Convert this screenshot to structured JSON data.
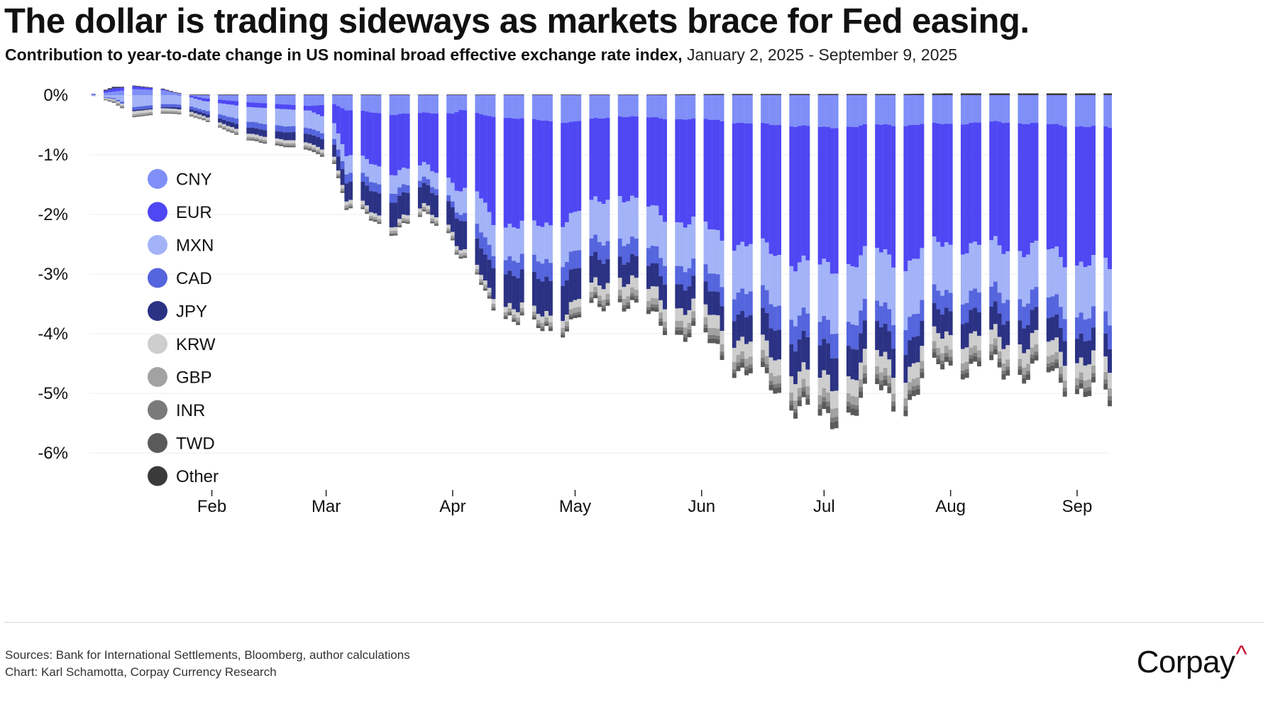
{
  "title": "The dollar is trading sideways as markets brace for Fed easing.",
  "subtitle": {
    "main": "Contribution to year-to-date change in US nominal broad effective exchange rate index,",
    "range": " January 2, 2025 - September 9, 2025"
  },
  "footer": {
    "sources": "Sources: Bank for International Settlements, Bloomberg, author calculations",
    "credit": "Chart: Karl Schamotta, Corpay Currency Research"
  },
  "brand": {
    "name": "Corpay",
    "mark": "^",
    "mark_color": "#c8102e"
  },
  "chart_data": {
    "type": "bar",
    "stacked": true,
    "x_start": "2025-01-02",
    "x_end": "2025-09-09",
    "x_tick_dates": [
      "2025-02-01",
      "2025-03-01",
      "2025-04-01",
      "2025-05-01",
      "2025-06-01",
      "2025-07-01",
      "2025-08-01",
      "2025-09-01"
    ],
    "x_tick_labels": [
      "Feb",
      "Mar",
      "Apr",
      "May",
      "Jun",
      "Jul",
      "Aug",
      "Sep"
    ],
    "y_ticks": [
      0,
      -1,
      -2,
      -3,
      -4,
      -5,
      -6
    ],
    "y_tick_labels": [
      "0%",
      "-1%",
      "-2%",
      "-3%",
      "-4%",
      "-5%",
      "-6%"
    ],
    "ylim": [
      -6.8,
      0.45
    ],
    "grid": "horizontal",
    "legend_position": "left-inside",
    "series_colors": {
      "CNY": "#7f8ff7",
      "EUR": "#4f47f3",
      "MXN": "#a3b3f7",
      "CAD": "#5565dd",
      "JPY": "#2b3284",
      "KRW": "#cecece",
      "GBP": "#a2a2a2",
      "INR": "#7a7a7a",
      "TWD": "#5a5a5a",
      "Other": "#3a3a3a"
    },
    "keypoints": {
      "dates": [
        "2025-01-02",
        "2025-01-08",
        "2025-01-13",
        "2025-01-20",
        "2025-01-30",
        "2025-02-10",
        "2025-02-25",
        "2025-03-03",
        "2025-03-06",
        "2025-03-17",
        "2025-03-26",
        "2025-04-01",
        "2025-04-03",
        "2025-04-07",
        "2025-04-09",
        "2025-04-11",
        "2025-04-21",
        "2025-04-30",
        "2025-05-12",
        "2025-05-20",
        "2025-06-05",
        "2025-06-13",
        "2025-06-27",
        "2025-07-01",
        "2025-07-08",
        "2025-07-14",
        "2025-07-21",
        "2025-07-31",
        "2025-08-13",
        "2025-08-22",
        "2025-09-02",
        "2025-09-09"
      ],
      "series": [
        {
          "name": "CNY",
          "values": [
            0,
            0.06,
            0.1,
            0.08,
            -0.05,
            -0.12,
            -0.18,
            -0.15,
            -0.25,
            -0.32,
            -0.3,
            -0.3,
            -0.25,
            -0.3,
            -0.35,
            -0.35,
            -0.42,
            -0.45,
            -0.35,
            -0.38,
            -0.42,
            -0.48,
            -0.52,
            -0.55,
            -0.52,
            -0.5,
            -0.5,
            -0.48,
            -0.45,
            -0.48,
            -0.52,
            -0.55
          ]
        },
        {
          "name": "EUR",
          "values": [
            0,
            0.05,
            0.05,
            0.02,
            -0.05,
            -0.08,
            -0.08,
            -0.3,
            -0.75,
            -0.95,
            -0.9,
            -1.1,
            -1.4,
            -1.35,
            -1.55,
            -1.7,
            -1.85,
            -1.55,
            -1.3,
            -1.55,
            -1.9,
            -2.05,
            -2.3,
            -2.38,
            -2.25,
            -2.15,
            -2.28,
            -2.0,
            -2.1,
            -2.1,
            -2.25,
            -2.4
          ]
        },
        {
          "name": "MXN",
          "values": [
            0,
            -0.05,
            -0.2,
            -0.15,
            -0.15,
            -0.25,
            -0.3,
            -0.25,
            -0.3,
            -0.3,
            -0.25,
            -0.3,
            -0.4,
            -0.55,
            -0.6,
            -0.5,
            -0.6,
            -0.65,
            -0.7,
            -0.7,
            -0.75,
            -0.8,
            -0.9,
            -1.0,
            -0.95,
            -0.9,
            -0.95,
            -0.8,
            -0.8,
            -0.8,
            -0.85,
            -0.95
          ]
        },
        {
          "name": "CAD",
          "values": [
            0,
            -0.02,
            -0.05,
            -0.05,
            -0.05,
            -0.1,
            -0.1,
            -0.1,
            -0.15,
            -0.15,
            -0.1,
            -0.1,
            -0.1,
            -0.25,
            -0.3,
            -0.2,
            -0.3,
            -0.3,
            -0.3,
            -0.3,
            -0.3,
            -0.4,
            -0.4,
            -0.4,
            -0.4,
            -0.35,
            -0.4,
            -0.3,
            -0.35,
            -0.35,
            -0.35,
            -0.4
          ]
        },
        {
          "name": "JPY",
          "values": [
            0,
            0.02,
            -0.02,
            -0.02,
            -0.05,
            -0.1,
            -0.15,
            -0.2,
            -0.3,
            -0.4,
            -0.35,
            -0.4,
            -0.5,
            -0.45,
            -0.45,
            -0.5,
            -0.6,
            -0.55,
            -0.35,
            -0.4,
            -0.4,
            -0.45,
            -0.55,
            -0.55,
            -0.5,
            -0.5,
            -0.45,
            -0.4,
            -0.4,
            -0.4,
            -0.4,
            -0.4
          ]
        },
        {
          "name": "KRW",
          "values": [
            0,
            -0.02,
            -0.05,
            -0.04,
            -0.03,
            -0.05,
            -0.05,
            -0.05,
            -0.06,
            -0.06,
            -0.06,
            -0.06,
            -0.06,
            -0.07,
            -0.07,
            -0.08,
            -0.1,
            -0.12,
            -0.2,
            -0.2,
            -0.22,
            -0.25,
            -0.28,
            -0.3,
            -0.28,
            -0.27,
            -0.26,
            -0.24,
            -0.24,
            -0.24,
            -0.25,
            -0.26
          ]
        },
        {
          "name": "GBP",
          "values": [
            0,
            -0.02,
            -0.03,
            -0.03,
            -0.02,
            -0.03,
            -0.03,
            -0.03,
            -0.04,
            -0.04,
            -0.04,
            -0.04,
            -0.04,
            -0.05,
            -0.05,
            -0.05,
            -0.06,
            -0.08,
            -0.1,
            -0.1,
            -0.12,
            -0.13,
            -0.14,
            -0.15,
            -0.14,
            -0.13,
            -0.13,
            -0.12,
            -0.12,
            -0.12,
            -0.12,
            -0.13
          ]
        },
        {
          "name": "INR",
          "values": [
            0,
            -0.01,
            -0.01,
            -0.01,
            -0.01,
            -0.02,
            -0.02,
            -0.02,
            -0.02,
            -0.02,
            -0.02,
            -0.02,
            -0.02,
            -0.02,
            -0.02,
            -0.03,
            -0.03,
            -0.04,
            -0.05,
            -0.05,
            -0.06,
            -0.06,
            -0.07,
            -0.08,
            -0.07,
            -0.07,
            -0.07,
            -0.06,
            -0.06,
            -0.06,
            -0.06,
            -0.07
          ]
        },
        {
          "name": "TWD",
          "values": [
            0,
            -0.01,
            -0.01,
            -0.01,
            -0.01,
            -0.01,
            -0.02,
            -0.02,
            -0.02,
            -0.02,
            -0.02,
            -0.02,
            -0.02,
            -0.02,
            -0.03,
            -0.03,
            -0.04,
            -0.05,
            -0.06,
            -0.07,
            -0.08,
            -0.09,
            -0.1,
            -0.12,
            -0.11,
            -0.1,
            -0.1,
            -0.09,
            -0.09,
            -0.09,
            -0.09,
            -0.1
          ]
        },
        {
          "name": "Other",
          "values": [
            0,
            0.01,
            0.01,
            0.01,
            0.01,
            0.01,
            0.01,
            0.01,
            0.01,
            0.01,
            0.01,
            0.01,
            0.01,
            0.01,
            0.01,
            0.01,
            0.01,
            0.01,
            0.01,
            0.01,
            0.02,
            0.02,
            0.02,
            0.02,
            0.02,
            0.02,
            0.02,
            0.03,
            0.03,
            0.03,
            0.03,
            0.03
          ]
        }
      ]
    }
  }
}
